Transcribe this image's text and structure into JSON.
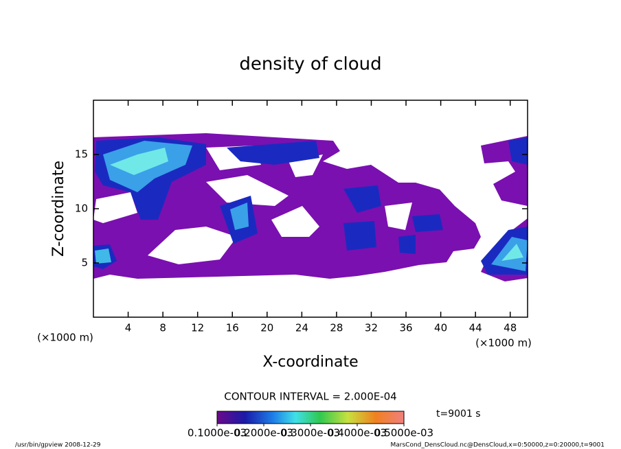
{
  "chart_data": {
    "type": "contour",
    "title": "density of cloud",
    "x_label": "X-coordinate",
    "y_label": "Z-coordinate",
    "x_unit": "(×1000 m)",
    "xlim": [
      0,
      50
    ],
    "xticks": [
      4,
      8,
      12,
      16,
      20,
      24,
      28,
      32,
      36,
      40,
      44,
      48
    ],
    "ylim": [
      0,
      20
    ],
    "yticks": [
      5,
      10,
      15
    ],
    "contour_interval": "CONTOUR INTERVAL = 2.000E-04",
    "time_label": "t=9001 s",
    "colorbar": {
      "lim": [
        0.0001,
        0.0005
      ],
      "ticks": [
        {
          "value": 0.0001,
          "label": "0.1000e-03"
        },
        {
          "value": 0.0002,
          "label": "0.2000e-03"
        },
        {
          "value": 0.0003,
          "label": "0.3000e-03"
        },
        {
          "value": 0.0004,
          "label": "0.4000e-03"
        },
        {
          "value": 0.0005,
          "label": "0.5000e-03"
        }
      ]
    },
    "footer_left": "/usr/bin/gpview  2008-12-29",
    "footer_right": "MarsCond_DensCloud.nc@DensCloud,x=0:50000,z=0:20000,t=9001"
  }
}
